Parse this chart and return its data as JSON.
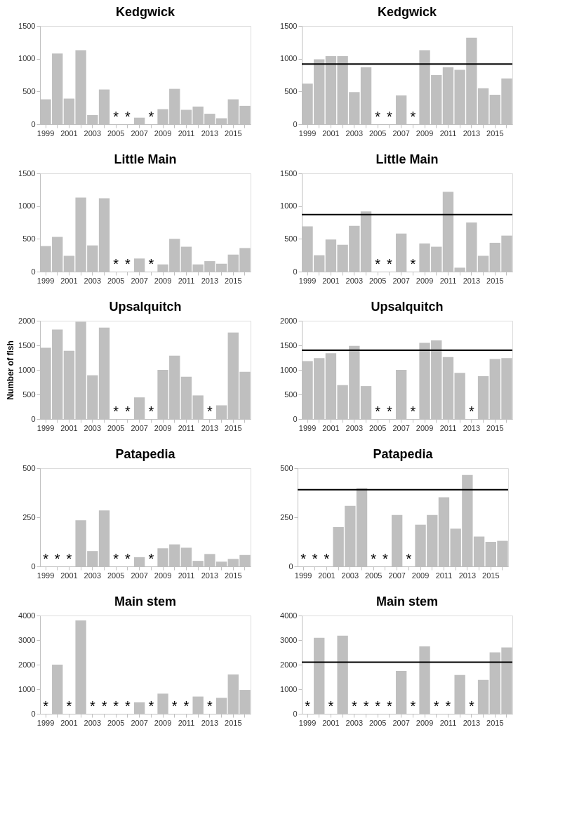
{
  "chart_data": [
    {
      "type": "bar",
      "title": "Kedgwick",
      "categories": [
        "1999",
        null,
        "2001",
        null,
        "2003",
        null,
        "2005",
        null,
        "2007",
        null,
        "2009",
        null,
        "2011",
        null,
        "2013",
        null,
        "2015",
        null
      ],
      "color": "#bfbfbf",
      "ylim": [
        0,
        1500
      ],
      "yticks": [
        0,
        500,
        1000,
        1500
      ],
      "grid": false,
      "values": [
        380,
        1080,
        390,
        1130,
        140,
        530,
        null,
        null,
        100,
        null,
        230,
        540,
        220,
        270,
        160,
        90,
        380,
        280
      ],
      "value_labels": [
        null,
        null,
        null,
        null,
        null,
        null,
        "*",
        "*",
        null,
        "*",
        null,
        null,
        null,
        null,
        null,
        null,
        null,
        null
      ]
    },
    {
      "type": "bar",
      "title": "Kedgwick",
      "categories": [
        "1999",
        null,
        "2001",
        null,
        "2003",
        null,
        "2005",
        null,
        "2007",
        null,
        "2009",
        null,
        "2011",
        null,
        "2013",
        null,
        "2015",
        null
      ],
      "color": "#bfbfbf",
      "ylim": [
        0,
        1500
      ],
      "yticks": [
        0,
        500,
        1000,
        1500
      ],
      "grid": false,
      "values": [
        620,
        990,
        1040,
        1040,
        490,
        870,
        null,
        null,
        440,
        null,
        1130,
        750,
        870,
        830,
        1320,
        550,
        450,
        700
      ],
      "value_labels": [
        null,
        null,
        null,
        null,
        null,
        null,
        "*",
        "*",
        null,
        "*",
        null,
        null,
        null,
        null,
        null,
        null,
        null,
        null
      ],
      "ref_lines": [
        {
          "axis": "y",
          "value": 920,
          "label": null,
          "color": "#000000"
        }
      ]
    },
    {
      "type": "bar",
      "title": "Little Main",
      "categories": [
        "1999",
        null,
        "2001",
        null,
        "2003",
        null,
        "2005",
        null,
        "2007",
        null,
        "2009",
        null,
        "2011",
        null,
        "2013",
        null,
        "2015",
        null
      ],
      "color": "#bfbfbf",
      "ylim": [
        0,
        1500
      ],
      "yticks": [
        0,
        500,
        1000,
        1500
      ],
      "grid": false,
      "values": [
        390,
        530,
        240,
        1130,
        400,
        1120,
        null,
        null,
        200,
        null,
        110,
        500,
        380,
        110,
        160,
        120,
        260,
        360
      ],
      "value_labels": [
        null,
        null,
        null,
        null,
        null,
        null,
        "*",
        "*",
        null,
        "*",
        null,
        null,
        null,
        null,
        null,
        null,
        null,
        null
      ]
    },
    {
      "type": "bar",
      "title": "Little Main",
      "categories": [
        "1999",
        null,
        "2001",
        null,
        "2003",
        null,
        "2005",
        null,
        "2007",
        null,
        "2009",
        null,
        "2011",
        null,
        "2013",
        null,
        "2015",
        null
      ],
      "color": "#bfbfbf",
      "ylim": [
        0,
        1500
      ],
      "yticks": [
        0,
        500,
        1000,
        1500
      ],
      "grid": false,
      "values": [
        690,
        250,
        490,
        410,
        700,
        920,
        null,
        null,
        580,
        null,
        430,
        380,
        1220,
        60,
        750,
        240,
        440,
        550
      ],
      "value_labels": [
        null,
        null,
        null,
        null,
        null,
        null,
        "*",
        "*",
        null,
        "*",
        null,
        null,
        null,
        null,
        null,
        null,
        null,
        null
      ],
      "ref_lines": [
        {
          "axis": "y",
          "value": 870,
          "label": null,
          "color": "#000000"
        }
      ]
    },
    {
      "type": "bar",
      "title": "Upsalquitch",
      "ylabel": "Number of fish",
      "categories": [
        "1999",
        null,
        "2001",
        null,
        "2003",
        null,
        "2005",
        null,
        "2007",
        null,
        "2009",
        null,
        "2011",
        null,
        "2013",
        null,
        "2015",
        null
      ],
      "color": "#bfbfbf",
      "ylim": [
        0,
        2000
      ],
      "yticks": [
        0,
        500,
        1000,
        1500,
        2000
      ],
      "grid": false,
      "values": [
        1450,
        1820,
        1390,
        1980,
        890,
        1860,
        null,
        null,
        440,
        null,
        1000,
        1290,
        860,
        480,
        null,
        280,
        1760,
        960
      ],
      "value_labels": [
        null,
        null,
        null,
        null,
        null,
        null,
        "*",
        "*",
        null,
        "*",
        null,
        null,
        null,
        null,
        "*",
        null,
        null,
        null
      ]
    },
    {
      "type": "bar",
      "title": "Upsalquitch",
      "categories": [
        "1999",
        null,
        "2001",
        null,
        "2003",
        null,
        "2005",
        null,
        "2007",
        null,
        "2009",
        null,
        "2011",
        null,
        "2013",
        null,
        "2015",
        null
      ],
      "color": "#bfbfbf",
      "ylim": [
        0,
        2000
      ],
      "yticks": [
        0,
        500,
        1000,
        1500,
        2000
      ],
      "grid": false,
      "values": [
        1180,
        1240,
        1340,
        690,
        1490,
        670,
        null,
        null,
        1000,
        null,
        1550,
        1600,
        1260,
        940,
        null,
        870,
        1220,
        1240
      ],
      "value_labels": [
        null,
        null,
        null,
        null,
        null,
        null,
        "*",
        "*",
        null,
        "*",
        null,
        null,
        null,
        null,
        "*",
        null,
        null,
        null
      ],
      "ref_lines": [
        {
          "axis": "y",
          "value": 1400,
          "label": null,
          "color": "#000000"
        }
      ]
    },
    {
      "type": "bar",
      "title": "Patapedia",
      "categories": [
        "1999",
        null,
        "2001",
        null,
        "2003",
        null,
        "2005",
        null,
        "2007",
        null,
        "2009",
        null,
        "2011",
        null,
        "2013",
        null,
        "2015",
        null
      ],
      "color": "#bfbfbf",
      "ylim": [
        0,
        500
      ],
      "yticks": [
        0,
        250,
        500
      ],
      "grid": false,
      "values": [
        null,
        null,
        null,
        235,
        78,
        285,
        null,
        null,
        47,
        null,
        92,
        112,
        95,
        28,
        63,
        24,
        38,
        58
      ],
      "value_labels": [
        "*",
        "*",
        "*",
        null,
        null,
        null,
        "*",
        "*",
        null,
        "*",
        null,
        null,
        null,
        null,
        null,
        null,
        null,
        null
      ]
    },
    {
      "type": "bar",
      "title": "Patapedia",
      "categories": [
        "1999",
        null,
        "2001",
        null,
        "2003",
        null,
        "2005",
        null,
        "2007",
        null,
        "2009",
        null,
        "2011",
        null,
        "2013",
        null,
        "2015",
        null
      ],
      "color": "#bfbfbf",
      "ylim": [
        0,
        500
      ],
      "yticks": [
        0,
        250,
        500
      ],
      "grid": false,
      "values": [
        null,
        null,
        null,
        200,
        308,
        398,
        null,
        null,
        262,
        null,
        212,
        262,
        352,
        192,
        465,
        152,
        125,
        130
      ],
      "value_labels": [
        "*",
        "*",
        "*",
        null,
        null,
        null,
        "*",
        "*",
        null,
        "*",
        null,
        null,
        null,
        null,
        null,
        null,
        null,
        null
      ],
      "ref_lines": [
        {
          "axis": "y",
          "value": 390,
          "label": null,
          "color": "#000000"
        }
      ]
    },
    {
      "type": "bar",
      "title": "Main stem",
      "categories": [
        "1999",
        null,
        "2001",
        null,
        "2003",
        null,
        "2005",
        null,
        "2007",
        null,
        "2009",
        null,
        "2011",
        null,
        "2013",
        null,
        "2015",
        null
      ],
      "color": "#bfbfbf",
      "ylim": [
        0,
        4000
      ],
      "yticks": [
        0,
        1000,
        2000,
        3000,
        4000
      ],
      "grid": false,
      "values": [
        null,
        2000,
        null,
        3800,
        null,
        null,
        null,
        null,
        470,
        null,
        820,
        null,
        null,
        700,
        null,
        650,
        1600,
        970
      ],
      "value_labels": [
        "*",
        null,
        "*",
        null,
        "*",
        "*",
        "*",
        "*",
        null,
        "*",
        null,
        "*",
        "*",
        null,
        "*",
        null,
        null,
        null
      ]
    },
    {
      "type": "bar",
      "title": "Main stem",
      "categories": [
        "1999",
        null,
        "2001",
        null,
        "2003",
        null,
        "2005",
        null,
        "2007",
        null,
        "2009",
        null,
        "2011",
        null,
        "2013",
        null,
        "2015",
        null
      ],
      "color": "#bfbfbf",
      "ylim": [
        0,
        4000
      ],
      "yticks": [
        0,
        1000,
        2000,
        3000,
        4000
      ],
      "grid": false,
      "values": [
        null,
        3090,
        null,
        3180,
        null,
        null,
        null,
        null,
        1740,
        null,
        2740,
        null,
        null,
        1580,
        null,
        1380,
        2500,
        2700
      ],
      "value_labels": [
        "*",
        null,
        "*",
        null,
        "*",
        "*",
        "*",
        "*",
        null,
        "*",
        null,
        "*",
        "*",
        null,
        "*",
        null,
        null,
        null
      ],
      "ref_lines": [
        {
          "axis": "y",
          "value": 2100,
          "label": null,
          "color": "#000000"
        }
      ]
    }
  ]
}
